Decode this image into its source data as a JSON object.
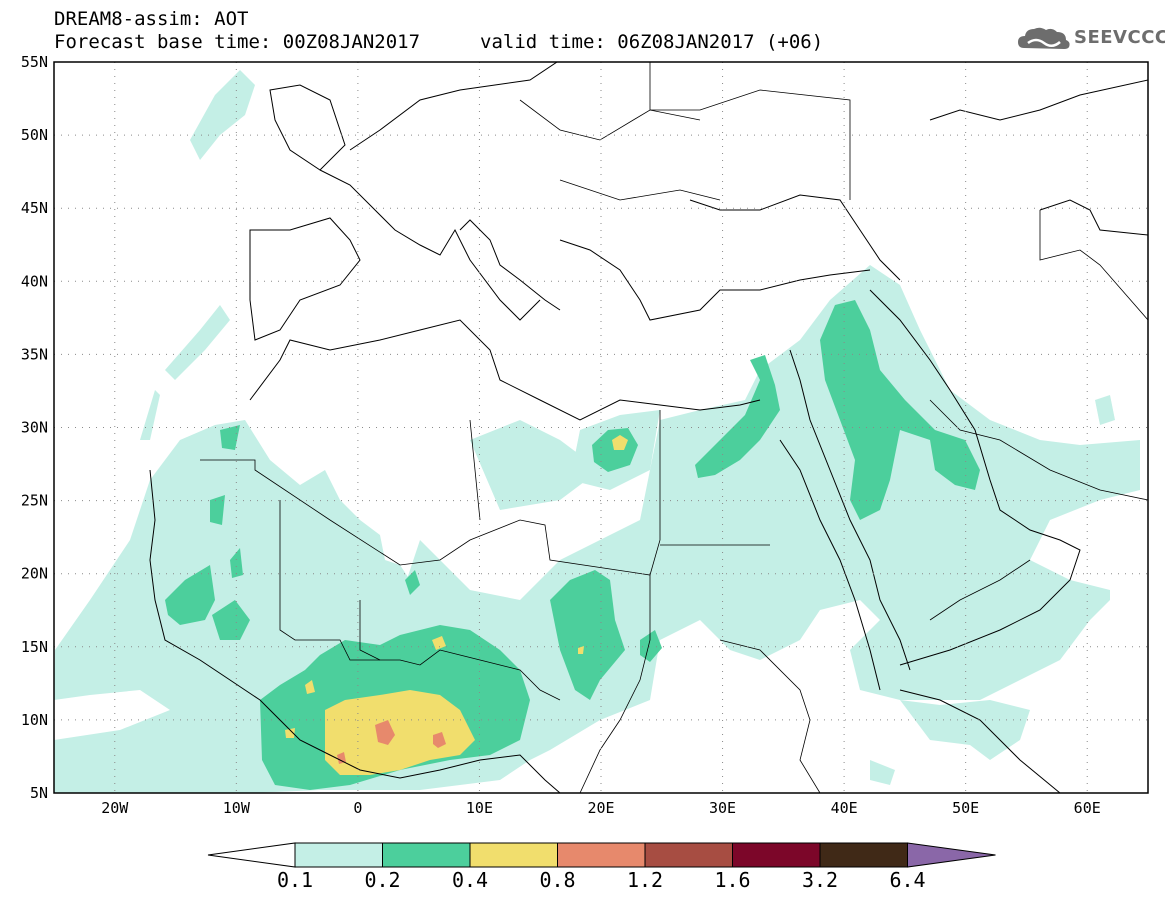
{
  "header": {
    "title": "DREAM8-assim: AOT",
    "base_time": "Forecast base time: 00Z08JAN2017",
    "valid_time": "valid time: 06Z08JAN2017 (+06)"
  },
  "logo": {
    "text": "SEEVCCC",
    "icon": "cloud-icon",
    "color": "#6d6d6d"
  },
  "map": {
    "projection": "lat-lon",
    "lon_range": [
      -25,
      65
    ],
    "lat_range": [
      5,
      55
    ],
    "lat_labels": [
      "55N",
      "50N",
      "45N",
      "40N",
      "35N",
      "30N",
      "25N",
      "20N",
      "15N",
      "10N",
      "5N"
    ],
    "lon_labels": [
      "20W",
      "10W",
      "0",
      "10E",
      "20E",
      "30E",
      "40E",
      "50E",
      "60E"
    ],
    "gridlines": "dotted"
  },
  "colorbar": {
    "levels": [
      "0.1",
      "0.2",
      "0.4",
      "0.8",
      "1.2",
      "1.6",
      "3.2",
      "6.4"
    ],
    "colors": [
      "#ffffff",
      "#c4efe6",
      "#4ccf9c",
      "#f1de6d",
      "#e7896c",
      "#a74d42",
      "#7c0629",
      "#402917",
      "#8a67a8"
    ]
  }
}
